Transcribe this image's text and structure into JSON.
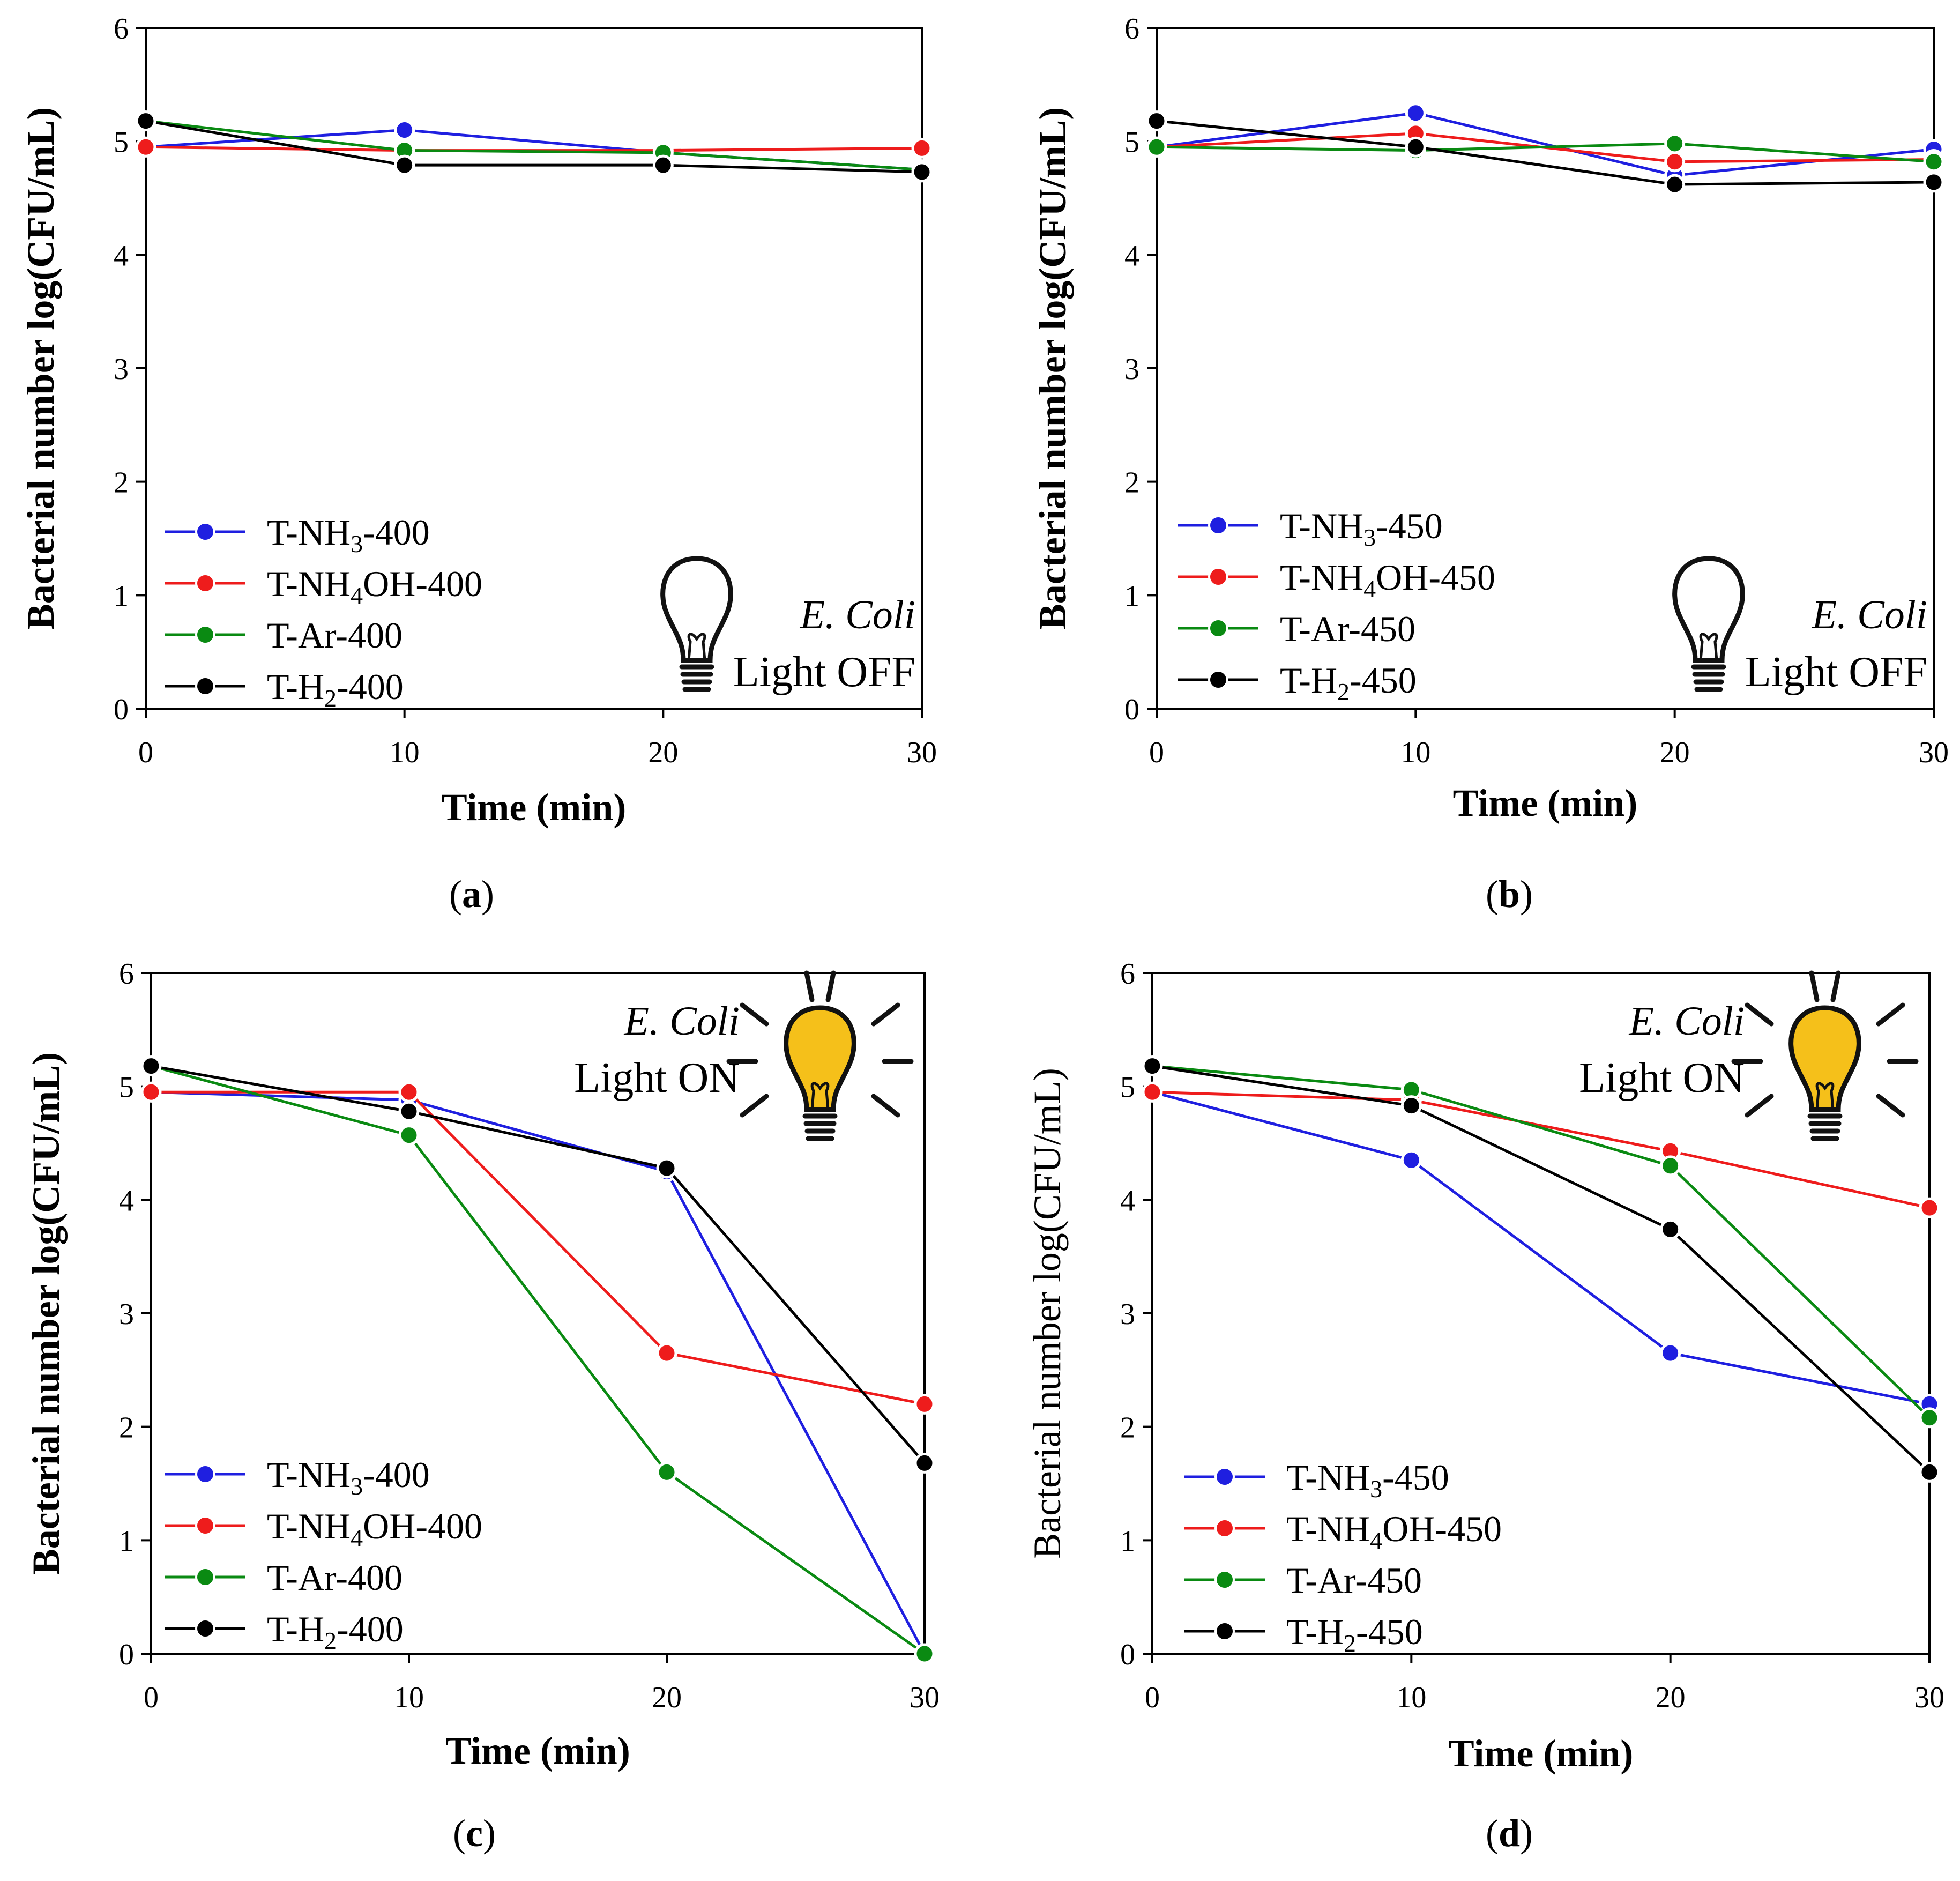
{
  "colors": {
    "T-NH3": "#1f1fe0",
    "T-NH4OH": "#ee1c1c",
    "T-Ar": "#0a8a12",
    "T-H2": "#000000",
    "bulb_on_fill": "#f5c01a"
  },
  "chart_data": [
    {
      "type": "line",
      "panel": "(a)",
      "xlabel": "Time (min)",
      "ylabel": "Bacterial number log(CFU/mL)",
      "x": [
        0,
        10,
        20,
        30
      ],
      "xlim": [
        0,
        30
      ],
      "ylim": [
        0,
        6
      ],
      "xticks": [
        0,
        10,
        20,
        30
      ],
      "yticks": [
        0,
        1,
        2,
        3,
        4,
        5,
        6
      ],
      "legend_position": "bottom-left",
      "annotation": {
        "organism": "E. Coli",
        "light": "Light OFF",
        "bulb": "off",
        "position": "bottom-right"
      },
      "series": [
        {
          "name": "T-NH3-400",
          "base": "T-NH",
          "sub": "3",
          "suffix": "-400",
          "color_key": "T-NH3",
          "values": [
            4.95,
            5.1,
            4.9,
            4.75
          ]
        },
        {
          "name": "T-NH4OH-400",
          "base": "T-NH",
          "sub": "4",
          "suffix": "OH-400",
          "color_key": "T-NH4OH",
          "values": [
            4.95,
            4.92,
            4.92,
            4.94
          ]
        },
        {
          "name": "T-Ar-400",
          "base": "T-Ar-400",
          "sub": "",
          "suffix": "",
          "color_key": "T-Ar",
          "values": [
            5.18,
            4.92,
            4.9,
            4.75
          ]
        },
        {
          "name": "T-H2-400",
          "base": "T-H",
          "sub": "2",
          "suffix": "-400",
          "color_key": "T-H2",
          "values": [
            5.18,
            4.79,
            4.79,
            4.73
          ]
        }
      ]
    },
    {
      "type": "line",
      "panel": "(b)",
      "xlabel": "Time (min)",
      "ylabel": "Bacterial number log(CFU/mL)",
      "x": [
        0,
        10,
        20,
        30
      ],
      "xlim": [
        0,
        30
      ],
      "ylim": [
        0,
        6
      ],
      "xticks": [
        0,
        10,
        20,
        30
      ],
      "yticks": [
        0,
        1,
        2,
        3,
        4,
        5,
        6
      ],
      "legend_position": "bottom-left",
      "annotation": {
        "organism": "E. Coli",
        "light": "Light OFF",
        "bulb": "off",
        "position": "bottom-right"
      },
      "series": [
        {
          "name": "T-NH3-450",
          "base": "T-NH",
          "sub": "3",
          "suffix": "-450",
          "color_key": "T-NH3",
          "values": [
            4.95,
            5.25,
            4.7,
            4.93
          ]
        },
        {
          "name": "T-NH4OH-450",
          "base": "T-NH",
          "sub": "4",
          "suffix": "OH-450",
          "color_key": "T-NH4OH",
          "values": [
            4.95,
            5.07,
            4.82,
            4.84
          ]
        },
        {
          "name": "T-Ar-450",
          "base": "T-Ar-450",
          "sub": "",
          "suffix": "",
          "color_key": "T-Ar",
          "values": [
            4.95,
            4.92,
            4.98,
            4.82
          ]
        },
        {
          "name": "T-H2-450",
          "base": "T-H",
          "sub": "2",
          "suffix": "-450",
          "color_key": "T-H2",
          "values": [
            5.18,
            4.95,
            4.62,
            4.64
          ]
        }
      ]
    },
    {
      "type": "line",
      "panel": "(c)",
      "xlabel": "Time (min)",
      "ylabel": "Bacterial number log(CFU/mL)",
      "x": [
        0,
        10,
        20,
        30
      ],
      "xlim": [
        0,
        30
      ],
      "ylim": [
        0,
        6
      ],
      "xticks": [
        0,
        10,
        20,
        30
      ],
      "yticks": [
        0,
        1,
        2,
        3,
        4,
        5,
        6
      ],
      "legend_position": "bottom-left",
      "annotation": {
        "organism": "E. Coli",
        "light": "Light ON",
        "bulb": "on",
        "position": "top-right"
      },
      "series": [
        {
          "name": "T-NH3-400",
          "base": "T-NH",
          "sub": "3",
          "suffix": "-400",
          "color_key": "T-NH3",
          "values": [
            4.95,
            4.88,
            4.25,
            0.0
          ]
        },
        {
          "name": "T-NH4OH-400",
          "base": "T-NH",
          "sub": "4",
          "suffix": "OH-400",
          "color_key": "T-NH4OH",
          "values": [
            4.95,
            4.95,
            2.65,
            2.2
          ]
        },
        {
          "name": "T-Ar-400",
          "base": "T-Ar-400",
          "sub": "",
          "suffix": "",
          "color_key": "T-Ar",
          "values": [
            5.18,
            4.57,
            1.6,
            0.0
          ]
        },
        {
          "name": "T-H2-400",
          "base": "T-H",
          "sub": "2",
          "suffix": "-400",
          "color_key": "T-H2",
          "values": [
            5.18,
            4.78,
            4.28,
            1.68
          ]
        }
      ]
    },
    {
      "type": "line",
      "panel": "(d)",
      "xlabel": "Time (min)",
      "ylabel": "Bacterial number log(CFU/mL)",
      "ylabel_bold": false,
      "x": [
        0,
        10,
        20,
        30
      ],
      "xlim": [
        0,
        30
      ],
      "ylim": [
        0,
        6
      ],
      "xticks": [
        0,
        10,
        20,
        30
      ],
      "yticks": [
        0,
        1,
        2,
        3,
        4,
        5,
        6
      ],
      "legend_position": "bottom-left",
      "annotation": {
        "organism": "E. Coli",
        "light": "Light ON",
        "bulb": "on",
        "position": "top-right"
      },
      "series": [
        {
          "name": "T-NH3-450",
          "base": "T-NH",
          "sub": "3",
          "suffix": "-450",
          "color_key": "T-NH3",
          "values": [
            4.95,
            4.35,
            2.65,
            2.2
          ]
        },
        {
          "name": "T-NH4OH-450",
          "base": "T-NH",
          "sub": "4",
          "suffix": "OH-450",
          "color_key": "T-NH4OH",
          "values": [
            4.95,
            4.88,
            4.43,
            3.93
          ]
        },
        {
          "name": "T-Ar-450",
          "base": "T-Ar-450",
          "sub": "",
          "suffix": "",
          "color_key": "T-Ar",
          "values": [
            5.18,
            4.97,
            4.3,
            2.08
          ]
        },
        {
          "name": "T-H2-450",
          "base": "T-H",
          "sub": "2",
          "suffix": "-450",
          "color_key": "T-H2",
          "values": [
            5.18,
            4.83,
            3.74,
            1.6
          ]
        }
      ]
    }
  ]
}
